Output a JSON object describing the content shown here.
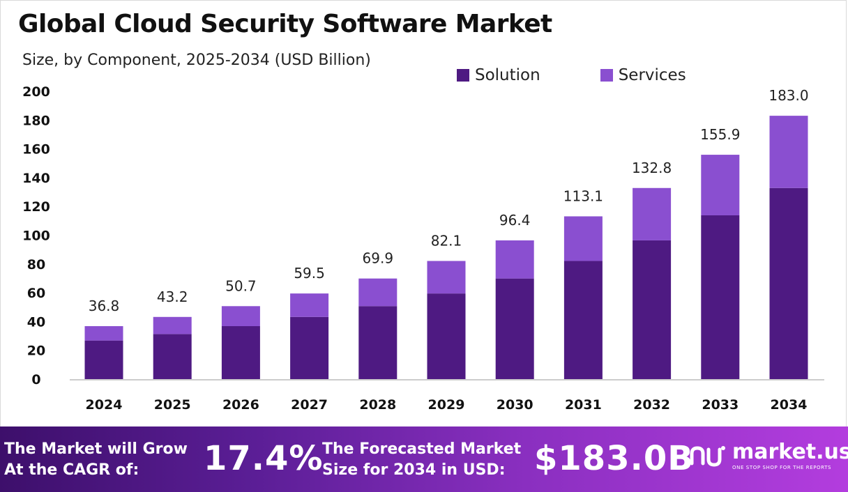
{
  "chart_data": {
    "type": "bar",
    "stacked": true,
    "title": "Global Cloud Security Software Market",
    "subtitle": "Size, by Component, 2025-2034 (USD Billion)",
    "categories": [
      "2024",
      "2025",
      "2026",
      "2027",
      "2028",
      "2029",
      "2030",
      "2031",
      "2032",
      "2033",
      "2034"
    ],
    "series": [
      {
        "name": "Solution",
        "color": "#4e1a82",
        "values": [
          26.8,
          31.3,
          36.8,
          43.2,
          50.7,
          59.5,
          69.9,
          82.1,
          96.4,
          113.8,
          132.8
        ]
      },
      {
        "name": "Services",
        "color": "#8a4fd0",
        "values": [
          10.0,
          11.9,
          13.9,
          16.3,
          19.2,
          22.6,
          26.5,
          31.0,
          36.4,
          42.1,
          50.2
        ]
      }
    ],
    "totals": [
      "36.8",
      "43.2",
      "50.7",
      "59.5",
      "69.9",
      "82.1",
      "96.4",
      "113.1",
      "132.8",
      "155.9",
      "183.0"
    ],
    "yticks": [
      "0",
      "20",
      "40",
      "60",
      "80",
      "100",
      "120",
      "140",
      "160",
      "180",
      "200"
    ],
    "ylim": [
      0,
      200
    ],
    "grid": false,
    "legend_position": "top-right"
  },
  "banner": {
    "cagr_label_line1": "The Market will Grow",
    "cagr_label_line2": "At the CAGR of:",
    "cagr_value": "17.4%",
    "forecast_label_line1": "The Forecasted Market",
    "forecast_label_line2": "Size for 2034 in USD:",
    "forecast_value": "$183.0B",
    "brand_name": "market.us",
    "brand_tagline": "ONE STOP SHOP FOR THE REPORTS"
  }
}
